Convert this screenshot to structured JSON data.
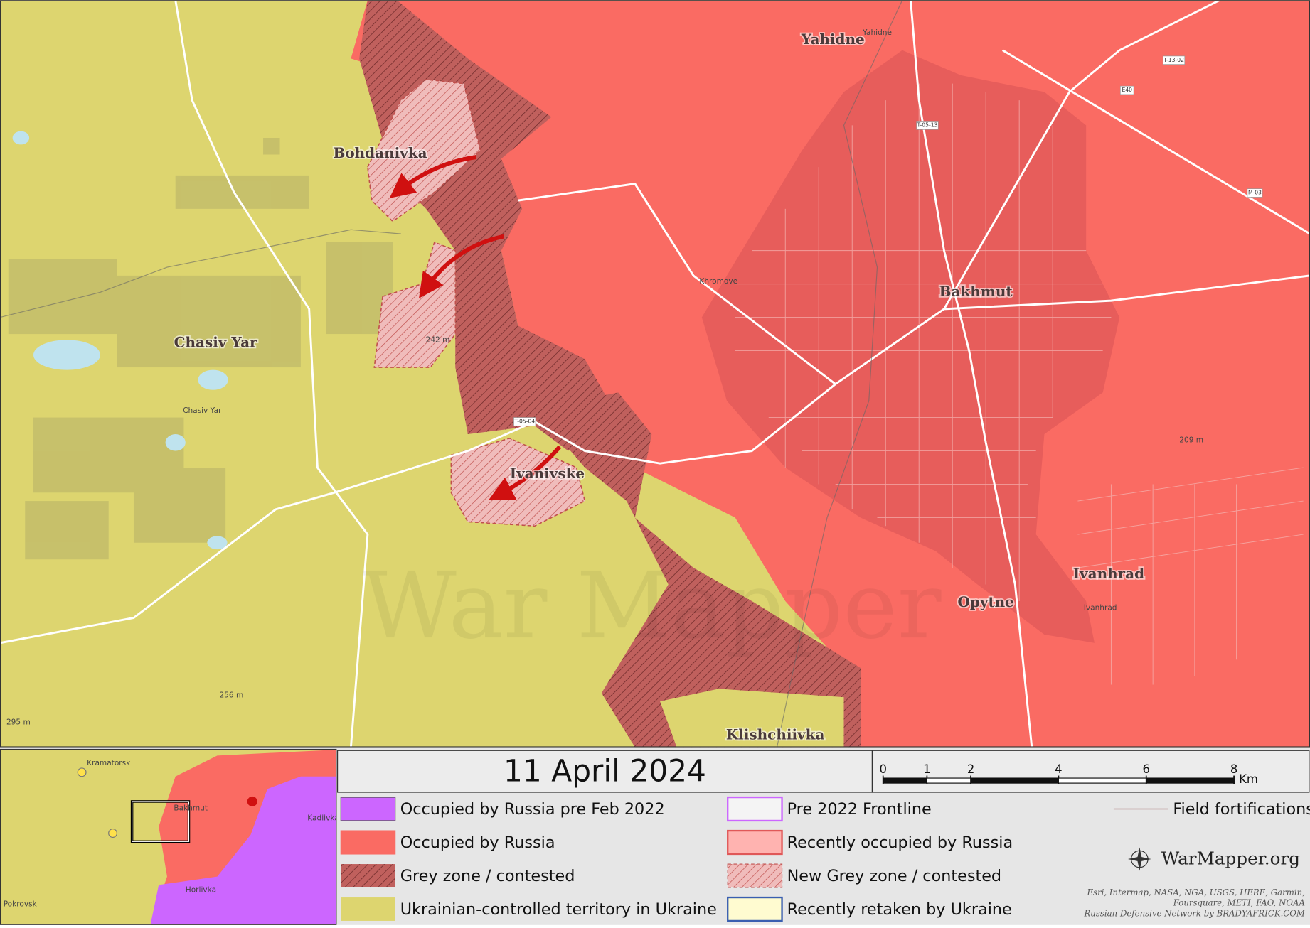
{
  "map": {
    "date": "11 April 2024",
    "places": [
      "Bohdanivka",
      "Chasiv Yar",
      "Ivanivske",
      "Bakhmut",
      "Yahidne",
      "Opytne",
      "Ivanhrad",
      "Klishchiivka"
    ],
    "small_places": [
      "Chasiv Yar",
      "Khromove",
      "Yahidne",
      "Ivanhrad"
    ],
    "roads": [
      "T-05-04",
      "T-05-13",
      "M-03",
      "T-13-02",
      "E40"
    ],
    "elevations": [
      "242 m",
      "209 m",
      "256 m",
      "295 m"
    ],
    "watermark": "War Mapper",
    "inset_places": [
      "Kramatorsk",
      "Bakhmut",
      "Kadiivka",
      "Horlivka",
      "Pokrovsk"
    ],
    "scale": {
      "ticks": [
        0,
        1,
        2,
        4,
        6,
        8
      ],
      "unit": "Km"
    },
    "legend": [
      "Occupied by Russia pre Feb 2022",
      "Occupied by Russia",
      "Grey zone / contested",
      "Ukrainian-controlled territory in Ukraine",
      "Pre 2022 Frontline",
      "Recently occupied by Russia",
      "New Grey zone / contested",
      "Recently retaken by Ukraine",
      "Field fortifications"
    ],
    "brand": "WarMapper.org",
    "credits": [
      "Esri, Intermap, NASA, NGA, USGS, HERE, Garmin,",
      "Foursquare, METI, FAO, NOAA",
      "Russian Defensive Network by BRADYAFRICK.COM"
    ]
  }
}
